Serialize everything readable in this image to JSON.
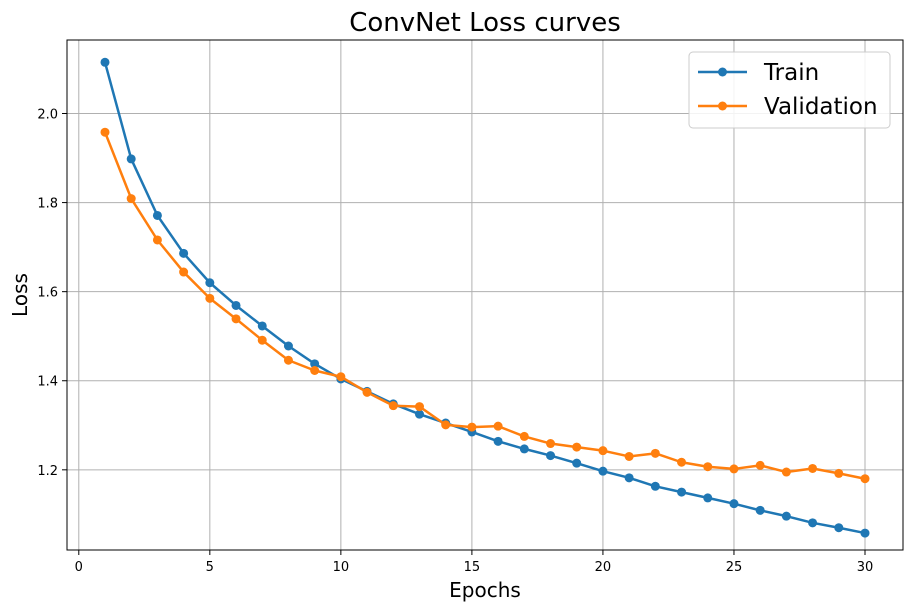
{
  "chart_data": {
    "type": "line",
    "title": "ConvNet Loss curves",
    "xlabel": "Epochs",
    "ylabel": "Loss",
    "xlim": [
      -0.45,
      31.45
    ],
    "ylim": [
      1.02,
      2.165
    ],
    "xticks": [
      0,
      5,
      10,
      15,
      20,
      25,
      30
    ],
    "yticks": [
      1.2,
      1.4,
      1.6,
      1.8,
      2.0
    ],
    "xtick_labels": [
      "0",
      "5",
      "10",
      "15",
      "20",
      "25",
      "30"
    ],
    "ytick_labels": [
      "1.2",
      "1.4",
      "1.6",
      "1.8",
      "2.0"
    ],
    "grid": true,
    "legend_position": "top-right",
    "x": [
      1,
      2,
      3,
      4,
      5,
      6,
      7,
      8,
      9,
      10,
      11,
      12,
      13,
      14,
      15,
      16,
      17,
      18,
      19,
      20,
      21,
      22,
      23,
      24,
      25,
      26,
      27,
      28,
      29,
      30
    ],
    "series": [
      {
        "name": "Train",
        "color": "#1f77b4",
        "values": [
          2.115,
          1.898,
          1.771,
          1.686,
          1.62,
          1.569,
          1.523,
          1.478,
          1.438,
          1.404,
          1.376,
          1.348,
          1.325,
          1.305,
          1.285,
          1.264,
          1.247,
          1.232,
          1.215,
          1.197,
          1.182,
          1.163,
          1.15,
          1.137,
          1.124,
          1.109,
          1.096,
          1.081,
          1.07,
          1.058
        ]
      },
      {
        "name": "Validation",
        "color": "#ff7f0e",
        "values": [
          1.958,
          1.809,
          1.716,
          1.644,
          1.585,
          1.539,
          1.491,
          1.446,
          1.423,
          1.409,
          1.374,
          1.344,
          1.342,
          1.301,
          1.296,
          1.298,
          1.275,
          1.259,
          1.251,
          1.243,
          1.23,
          1.237,
          1.217,
          1.207,
          1.202,
          1.21,
          1.195,
          1.203,
          1.192,
          1.18
        ]
      }
    ]
  }
}
